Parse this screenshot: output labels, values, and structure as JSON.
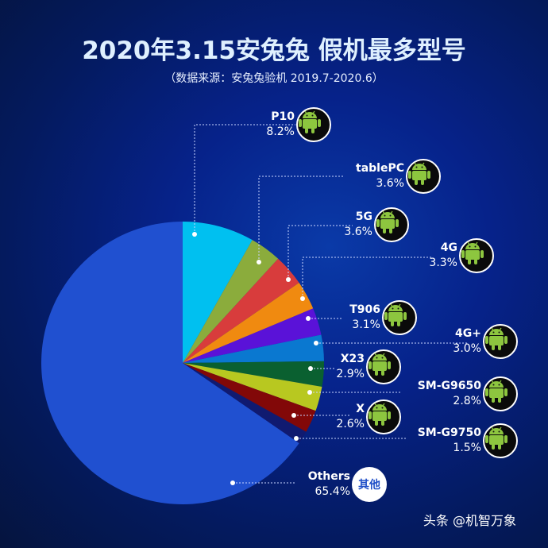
{
  "chart_data": {
    "type": "pie",
    "title": "2020年3.15安兔兔 假机最多型号",
    "subtitle": "（数据来源：安兔兔验机 2019.7-2020.6）",
    "start": "12 o'clock, clockwise",
    "slices": [
      {
        "label": "P10",
        "value": 8.2,
        "display": "8.2%",
        "color": "#00c0f0",
        "icon": "android-icon"
      },
      {
        "label": "tablePC",
        "value": 3.6,
        "display": "3.6%",
        "color": "#8bac3c",
        "icon": "android-icon"
      },
      {
        "label": "5G",
        "value": 3.6,
        "display": "3.6%",
        "color": "#d83c3c",
        "icon": "android-icon"
      },
      {
        "label": "4G",
        "value": 3.3,
        "display": "3.3%",
        "color": "#f08a10",
        "icon": "android-icon"
      },
      {
        "label": "T906",
        "value": 3.1,
        "display": "3.1%",
        "color": "#5a12d8",
        "icon": "android-icon"
      },
      {
        "label": "4G+",
        "value": 3.0,
        "display": "3.0%",
        "color": "#0a78d0",
        "icon": "android-icon"
      },
      {
        "label": "X23",
        "value": 2.9,
        "display": "2.9%",
        "color": "#0a6030",
        "icon": "android-icon"
      },
      {
        "label": "SM-G9650",
        "value": 2.8,
        "display": "2.8%",
        "color": "#b8c820",
        "icon": "android-icon"
      },
      {
        "label": "X",
        "value": 2.6,
        "display": "2.6%",
        "color": "#820808",
        "icon": "android-icon"
      },
      {
        "label": "SM-G9750",
        "value": 1.5,
        "display": "1.5%",
        "color": "#101a70",
        "icon": "android-icon"
      },
      {
        "label": "Others",
        "value": 65.4,
        "display": "65.4%",
        "color": "#2050d0",
        "badge": "其他"
      }
    ]
  },
  "footer": "头条 @机智万象"
}
